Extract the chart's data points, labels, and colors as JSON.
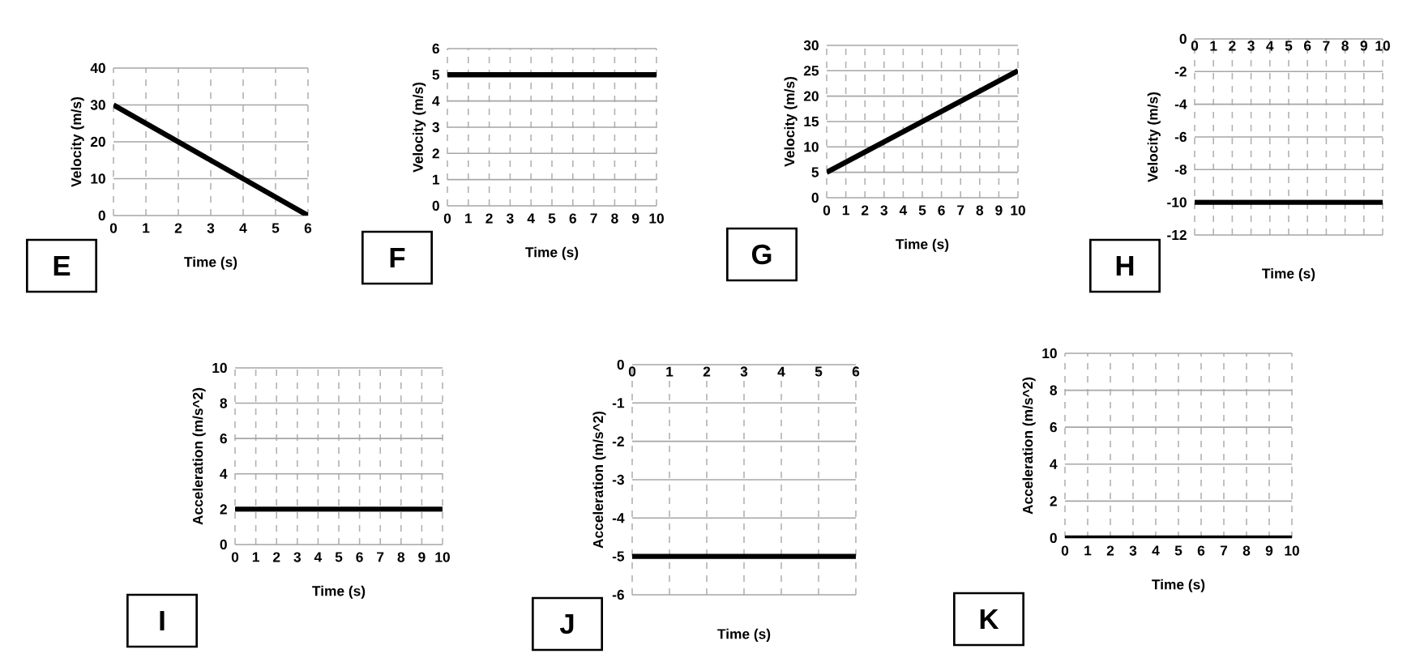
{
  "chart_data": [
    {
      "type": "line",
      "xlabel": "Time (s)",
      "ylabel": "Velocity (m/s)",
      "annotations": [
        "E"
      ],
      "x": [
        0,
        6
      ],
      "values": [
        30,
        0
      ],
      "color": "#000000",
      "xlim": [
        0,
        6
      ],
      "ylim": [
        0,
        40
      ],
      "xticks": [
        0,
        1,
        2,
        3,
        4,
        5,
        6
      ],
      "yticks": [
        0,
        10,
        20,
        30,
        40
      ],
      "grid": true
    },
    {
      "type": "line",
      "xlabel": "Time (s)",
      "ylabel": "Velocity (m/s)",
      "annotations": [
        "F"
      ],
      "x": [
        0,
        10
      ],
      "values": [
        5,
        5
      ],
      "color": "#000000",
      "xlim": [
        0,
        10
      ],
      "ylim": [
        0,
        6
      ],
      "xticks": [
        0,
        1,
        2,
        3,
        4,
        5,
        6,
        7,
        8,
        9,
        10
      ],
      "yticks": [
        0,
        1,
        2,
        3,
        4,
        5,
        6
      ],
      "grid": true
    },
    {
      "type": "line",
      "xlabel": "Time (s)",
      "ylabel": "Velocity (m/s)",
      "annotations": [
        "G"
      ],
      "x": [
        0,
        10
      ],
      "values": [
        5,
        25
      ],
      "color": "#000000",
      "xlim": [
        0,
        10
      ],
      "ylim": [
        0,
        30
      ],
      "xticks": [
        0,
        1,
        2,
        3,
        4,
        5,
        6,
        7,
        8,
        9,
        10
      ],
      "yticks": [
        0,
        5,
        10,
        15,
        20,
        25,
        30
      ],
      "grid": true
    },
    {
      "type": "line",
      "xlabel": "Time (s)",
      "ylabel": "Velocity (m/s)",
      "annotations": [
        "H"
      ],
      "x": [
        0,
        10
      ],
      "values": [
        -10,
        -10
      ],
      "color": "#000000",
      "xlim": [
        0,
        10
      ],
      "ylim": [
        -12,
        0
      ],
      "xticks": [
        0,
        1,
        2,
        3,
        4,
        5,
        6,
        7,
        8,
        9,
        10
      ],
      "yticks": [
        -12,
        -10,
        -8,
        -6,
        -4,
        -2,
        0
      ],
      "grid": true
    },
    {
      "type": "line",
      "xlabel": "Time (s)",
      "ylabel": "Acceleration (m/s^2)",
      "annotations": [
        "I"
      ],
      "x": [
        0,
        10
      ],
      "values": [
        2,
        2
      ],
      "color": "#000000",
      "xlim": [
        0,
        10
      ],
      "ylim": [
        0,
        10
      ],
      "xticks": [
        0,
        1,
        2,
        3,
        4,
        5,
        6,
        7,
        8,
        9,
        10
      ],
      "yticks": [
        0,
        2,
        4,
        6,
        8,
        10
      ],
      "grid": true
    },
    {
      "type": "line",
      "xlabel": "Time (s)",
      "ylabel": "Acceleration (m/s^2)",
      "annotations": [
        "J"
      ],
      "x": [
        0,
        6
      ],
      "values": [
        -5,
        -5
      ],
      "color": "#000000",
      "xlim": [
        0,
        6
      ],
      "ylim": [
        -6,
        0
      ],
      "xticks": [
        0,
        1,
        2,
        3,
        4,
        5,
        6
      ],
      "yticks": [
        -6,
        -5,
        -4,
        -3,
        -2,
        -1,
        0
      ],
      "grid": true
    },
    {
      "type": "line",
      "xlabel": "Time (s)",
      "ylabel": "Acceleration (m/s^2)",
      "annotations": [
        "K"
      ],
      "x": [
        0,
        10
      ],
      "values": [
        0,
        0
      ],
      "color": "#000000",
      "xlim": [
        0,
        10
      ],
      "ylim": [
        0,
        10
      ],
      "xticks": [
        0,
        1,
        2,
        3,
        4,
        5,
        6,
        7,
        8,
        9,
        10
      ],
      "yticks": [
        0,
        2,
        4,
        6,
        8,
        10
      ],
      "grid": true
    }
  ]
}
